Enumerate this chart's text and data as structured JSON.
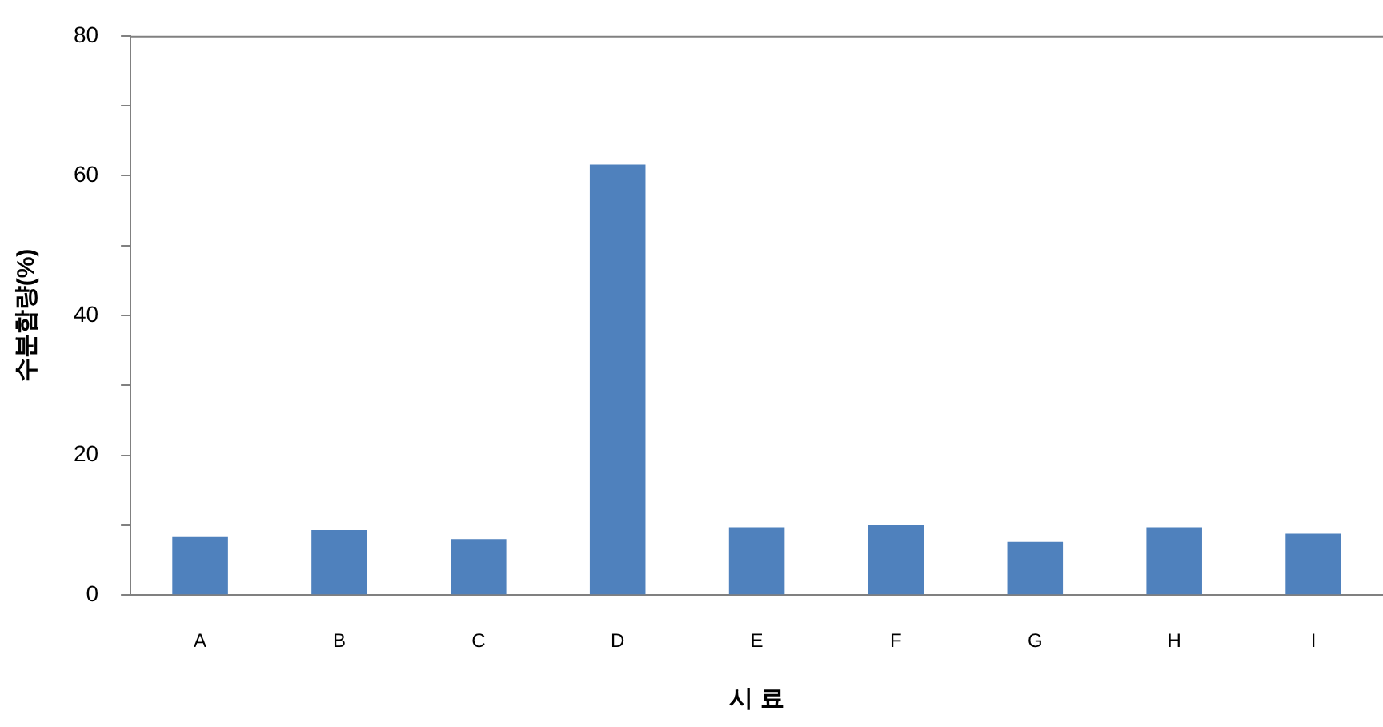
{
  "chart_data": {
    "type": "bar",
    "xlabel": "시 료",
    "ylabel": "수분함량(%)",
    "categories": [
      "A",
      "B",
      "C",
      "D",
      "E",
      "F",
      "G",
      "H",
      "I"
    ],
    "values": [
      8.3,
      9.3,
      8.0,
      61.6,
      9.7,
      10.0,
      7.6,
      9.7,
      8.8
    ],
    "color": "#4f81bd",
    "ylim": [
      0,
      80
    ],
    "yticks": [
      0,
      {
        "value": 10,
        "label": null
      },
      20,
      {
        "value": 30,
        "label": null
      },
      40,
      {
        "value": 50,
        "label": null
      },
      60,
      {
        "value": 70,
        "label": null
      },
      80
    ],
    "grid": false,
    "legend": false
  }
}
